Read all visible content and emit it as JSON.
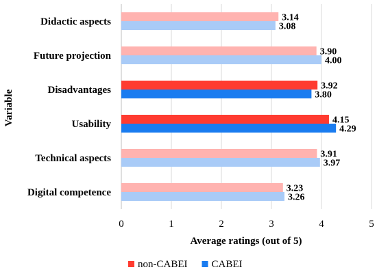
{
  "chart_data": {
    "type": "bar",
    "orientation": "horizontal",
    "title": "",
    "xlabel": "Average ratings (out of 5)",
    "ylabel": "Variable",
    "xlim": [
      0,
      5
    ],
    "xticks": [
      "0",
      "1",
      "2",
      "3",
      "4",
      "5"
    ],
    "grid": "vertical",
    "legend_position": "bottom",
    "categories": [
      "Didactic aspects",
      "Future projection",
      "Disadvantages",
      "Usability",
      "Technical aspects",
      "Digital competence"
    ],
    "series": [
      {
        "name": "non-CABEI",
        "values": [
          3.14,
          3.9,
          3.92,
          4.15,
          3.91,
          3.23
        ],
        "labels": [
          "3.14",
          "3.90",
          "3.92",
          "4.15",
          "3.91",
          "3.23"
        ],
        "color": "#ff3b30",
        "color_light": "#ffb3b0"
      },
      {
        "name": "CABEI",
        "values": [
          3.08,
          4.0,
          3.8,
          4.29,
          3.97,
          3.26
        ],
        "labels": [
          "3.08",
          "4.00",
          "3.80",
          "4.29",
          "3.97",
          "3.26"
        ],
        "color": "#1a7cf0",
        "color_light": "#a9cbf7"
      }
    ],
    "highlighted_categories": [
      "Disadvantages",
      "Usability"
    ]
  }
}
